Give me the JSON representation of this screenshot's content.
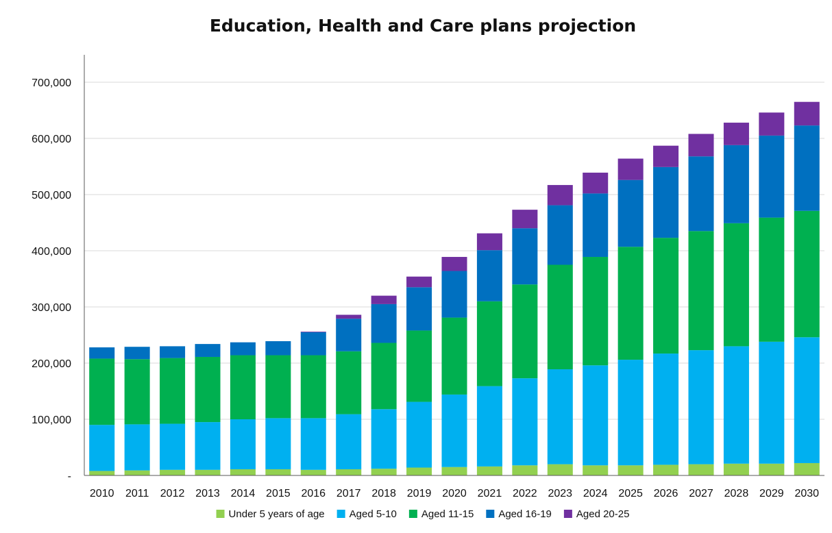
{
  "chart_data": {
    "type": "bar",
    "stacked": true,
    "title": "Education, Health and Care plans projection",
    "xlabel": "",
    "ylabel": "",
    "ylim": [
      0,
      700000
    ],
    "yticks": [
      0,
      100000,
      200000,
      300000,
      400000,
      500000,
      600000,
      700000
    ],
    "ytick_labels": [
      "-",
      "100,000",
      "200,000",
      "300,000",
      "400,000",
      "500,000",
      "600,000",
      "700,000"
    ],
    "grid": true,
    "legend_position": "bottom",
    "categories": [
      "2010",
      "2011",
      "2012",
      "2013",
      "2014",
      "2015",
      "2016",
      "2017",
      "2018",
      "2019",
      "2020",
      "2021",
      "2022",
      "2023",
      "2024",
      "2025",
      "2026",
      "2027",
      "2028",
      "2029",
      "2030"
    ],
    "series": [
      {
        "name": "Under 5 years of age",
        "color": "#92D050",
        "values": [
          8000,
          9000,
          10000,
          10000,
          11000,
          11000,
          10000,
          11000,
          12000,
          14000,
          15000,
          16000,
          18000,
          20000,
          18000,
          18000,
          19000,
          20000,
          21000,
          21000,
          22000
        ]
      },
      {
        "name": "Aged 5-10",
        "color": "#00B0F0",
        "values": [
          82000,
          82000,
          82000,
          85000,
          89000,
          91000,
          92000,
          98000,
          106000,
          117000,
          129000,
          143000,
          155000,
          169000,
          178000,
          188000,
          198000,
          203000,
          209000,
          217000,
          224000
        ]
      },
      {
        "name": "Aged 11-15",
        "color": "#00B050",
        "values": [
          118000,
          116000,
          117000,
          116000,
          114000,
          112000,
          112000,
          112000,
          118000,
          127000,
          137000,
          151000,
          167000,
          186000,
          193000,
          201000,
          206000,
          212000,
          219000,
          221000,
          225000
        ]
      },
      {
        "name": "Aged 16-19",
        "color": "#0070C0",
        "values": [
          20000,
          22000,
          21000,
          23000,
          23000,
          25000,
          41000,
          58000,
          69000,
          77000,
          83000,
          91000,
          100000,
          106000,
          113000,
          119000,
          126000,
          133000,
          139000,
          146000,
          152000
        ]
      },
      {
        "name": "Aged 20-25",
        "color": "#7030A0",
        "values": [
          0,
          0,
          0,
          0,
          0,
          0,
          1000,
          7000,
          15000,
          19000,
          25000,
          30000,
          33000,
          36000,
          37000,
          38000,
          38000,
          40000,
          40000,
          41000,
          42000
        ]
      }
    ]
  }
}
